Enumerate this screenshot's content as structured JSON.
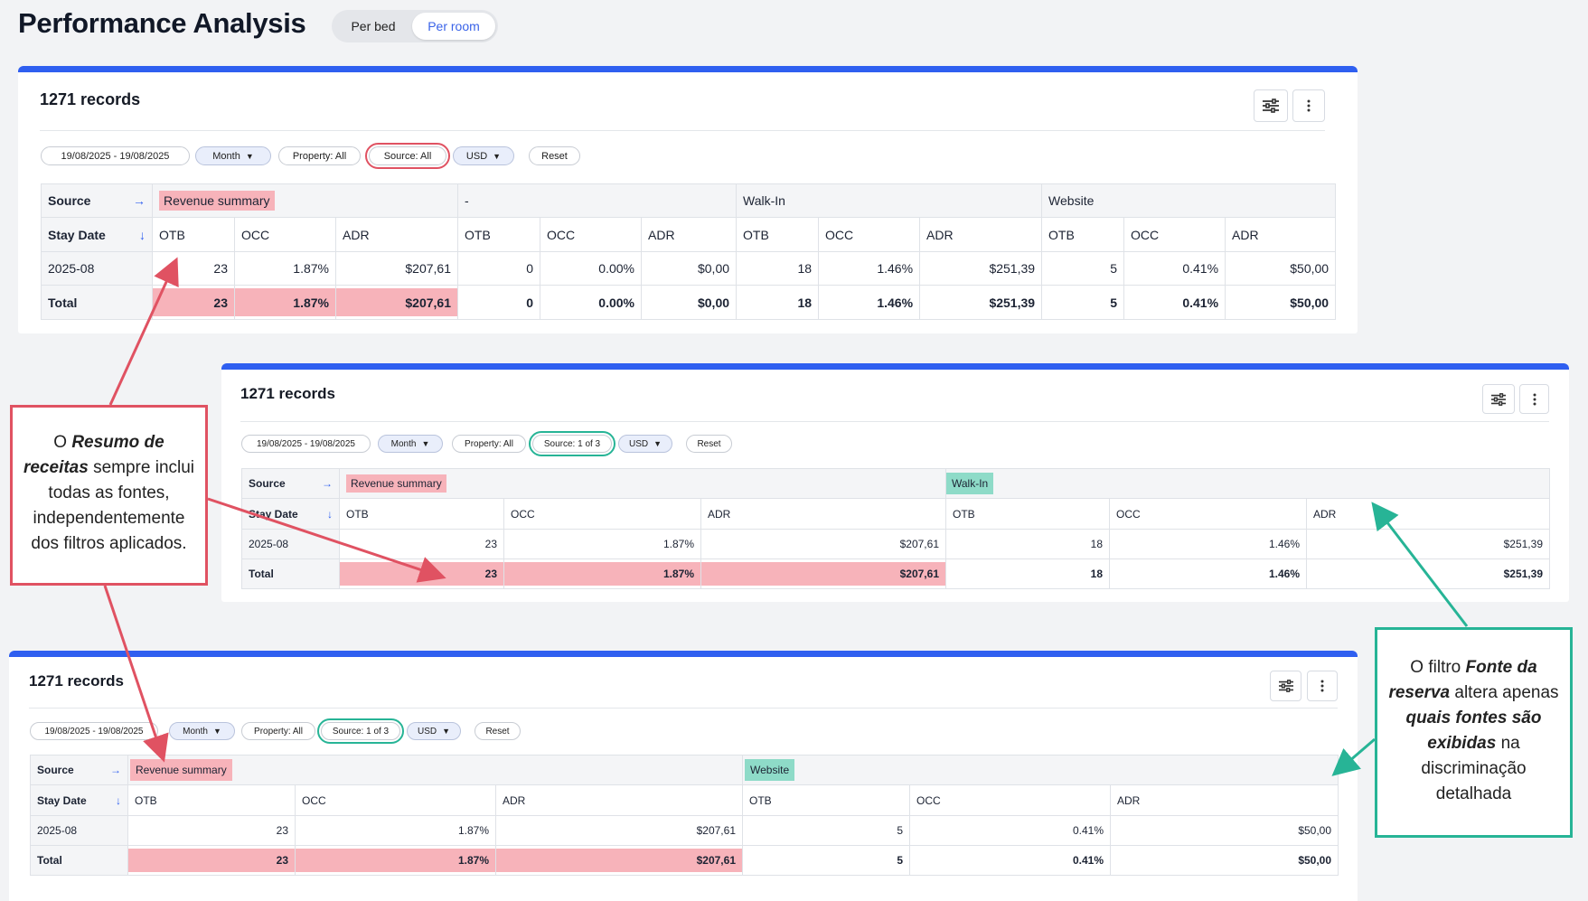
{
  "page": {
    "title": "Performance Analysis",
    "toggle": [
      "Per bed",
      "Per room"
    ]
  },
  "cards": [
    {
      "records": "1271 records",
      "filters": {
        "date": "19/08/2025 - 19/08/2025",
        "period": "Month",
        "property": "Property: All",
        "source": "Source: All",
        "currency": "USD",
        "reset": "Reset"
      },
      "row_labels": {
        "source": "Source",
        "stay_date": "Stay Date",
        "period": "2025-08",
        "total": "Total"
      },
      "groups": [
        "Revenue summary",
        "-",
        "Walk-In",
        "Website"
      ],
      "metrics": [
        "OTB",
        "OCC",
        "ADR"
      ],
      "data_row": [
        "23",
        "1.87%",
        "$207,61",
        "0",
        "0.00%",
        "$0,00",
        "18",
        "1.46%",
        "$251,39",
        "5",
        "0.41%",
        "$50,00"
      ],
      "total_row": [
        "23",
        "1.87%",
        "$207,61",
        "0",
        "0.00%",
        "$0,00",
        "18",
        "1.46%",
        "$251,39",
        "5",
        "0.41%",
        "$50,00"
      ]
    },
    {
      "records": "1271 records",
      "filters": {
        "date": "19/08/2025 - 19/08/2025",
        "period": "Month",
        "property": "Property: All",
        "source": "Source: 1 of 3",
        "currency": "USD",
        "reset": "Reset"
      },
      "row_labels": {
        "source": "Source",
        "stay_date": "Stay Date",
        "period": "2025-08",
        "total": "Total"
      },
      "groups": [
        "Revenue summary",
        "Walk-In"
      ],
      "metrics": [
        "OTB",
        "OCC",
        "ADR"
      ],
      "data_row": [
        "23",
        "1.87%",
        "$207,61",
        "18",
        "1.46%",
        "$251,39"
      ],
      "total_row": [
        "23",
        "1.87%",
        "$207,61",
        "18",
        "1.46%",
        "$251,39"
      ]
    },
    {
      "records": "1271 records",
      "filters": {
        "date": "19/08/2025 - 19/08/2025",
        "period": "Month",
        "property": "Property: All",
        "source": "Source: 1 of 3",
        "currency": "USD",
        "reset": "Reset"
      },
      "row_labels": {
        "source": "Source",
        "stay_date": "Stay Date",
        "period": "2025-08",
        "total": "Total"
      },
      "groups": [
        "Revenue summary",
        "Website"
      ],
      "metrics": [
        "OTB",
        "OCC",
        "ADR"
      ],
      "data_row": [
        "23",
        "1.87%",
        "$207,61",
        "5",
        "0.41%",
        "$50,00"
      ],
      "total_row": [
        "23",
        "1.87%",
        "$207,61",
        "5",
        "0.41%",
        "$50,00"
      ]
    }
  ],
  "annotations": {
    "left": {
      "pre": "O ",
      "bold": "Resumo de receitas",
      "post": " sempre inclui todas as fontes, independentemente dos filtros aplicados."
    },
    "right": {
      "pre": "O filtro ",
      "bold1": "Fonte da reserva",
      "mid": " altera apenas ",
      "bold2": "quais fontes são exibidas",
      "post": " na discriminação detalhada"
    }
  },
  "colors": {
    "accent": "#2f5ff0",
    "summary_highlight": "#f7b3ba",
    "source_highlight": "#8edbc8",
    "note_red": "#e05262",
    "note_teal": "#27b496"
  },
  "icons": [
    "sliders-icon",
    "kebab-menu-icon",
    "arrow-right-icon",
    "arrow-down-icon",
    "chevron-down-icon"
  ]
}
